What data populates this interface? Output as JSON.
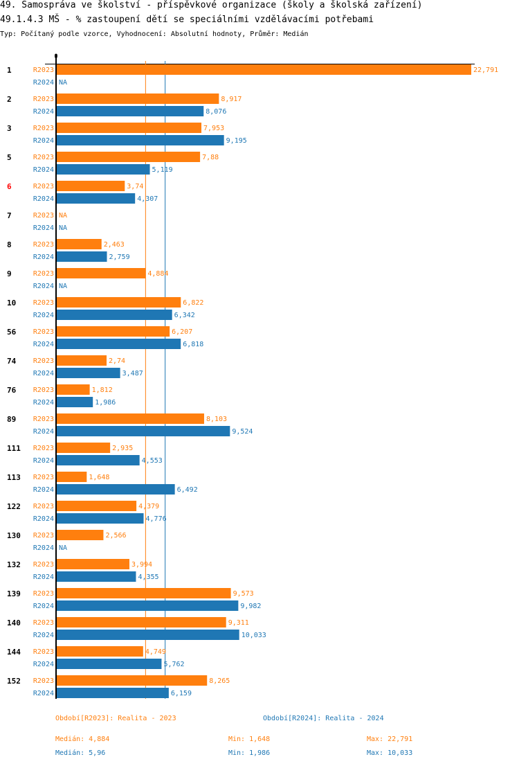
{
  "header": {
    "title": "49. Samospráva ve školství - příspěvkové organizace (školy a školská zařízení)",
    "subtitle": "49.1.4.3 MŠ - % zastoupení dětí se speciálními vzdělávacími potřebami",
    "meta": "Typ: Počítaný podle vzorce, Vyhodnocení: Absolutní hodnoty, Průměr: Medián"
  },
  "colors": {
    "r2023": "#ff7f0e",
    "r2024": "#1f77b4",
    "highlight": "#ff0000",
    "axis": "#000000"
  },
  "chart_data": {
    "type": "bar",
    "orientation": "horizontal",
    "axis_zero_label": "0",
    "xlim": [
      0,
      22.791
    ],
    "highlight_category": "6",
    "categories": [
      "1",
      "2",
      "3",
      "5",
      "6",
      "7",
      "8",
      "9",
      "10",
      "56",
      "74",
      "76",
      "89",
      "111",
      "113",
      "122",
      "130",
      "132",
      "139",
      "140",
      "144",
      "152"
    ],
    "series": [
      {
        "name": "R2023",
        "label": "Období[R2023]: Realita - 2023",
        "values": [
          22.791,
          8.917,
          7.953,
          7.88,
          3.74,
          null,
          2.463,
          4.884,
          6.822,
          6.207,
          2.74,
          1.812,
          8.103,
          2.935,
          1.648,
          4.379,
          2.566,
          3.994,
          9.573,
          9.311,
          4.749,
          8.265
        ],
        "value_labels": [
          "22,791",
          "8,917",
          "7,953",
          "7,88",
          "3,74",
          "NA",
          "2,463",
          "4,884",
          "6,822",
          "6,207",
          "2,74",
          "1,812",
          "8,103",
          "2,935",
          "1,648",
          "4,379",
          "2,566",
          "3,994",
          "9,573",
          "9,311",
          "4,749",
          "8,265"
        ],
        "median": 4.884,
        "median_label": "Medián: 4,884",
        "min_label": "Min: 1,648",
        "max_label": "Max: 22,791"
      },
      {
        "name": "R2024",
        "label": "Období[R2024]: Realita - 2024",
        "values": [
          null,
          8.076,
          9.195,
          5.119,
          4.307,
          null,
          2.759,
          null,
          6.342,
          6.818,
          3.487,
          1.986,
          9.524,
          4.553,
          6.492,
          4.776,
          null,
          4.355,
          9.982,
          10.033,
          5.762,
          6.159
        ],
        "value_labels": [
          "NA",
          "8,076",
          "9,195",
          "5,119",
          "4,307",
          "NA",
          "2,759",
          "NA",
          "6,342",
          "6,818",
          "3,487",
          "1,986",
          "9,524",
          "4,553",
          "6,492",
          "4,776",
          "NA",
          "4,355",
          "9,982",
          "10,033",
          "5,762",
          "6,159"
        ],
        "median": 5.96,
        "median_label": "Medián: 5,96",
        "min_label": "Min: 1,986",
        "max_label": "Max: 10,033"
      }
    ]
  }
}
